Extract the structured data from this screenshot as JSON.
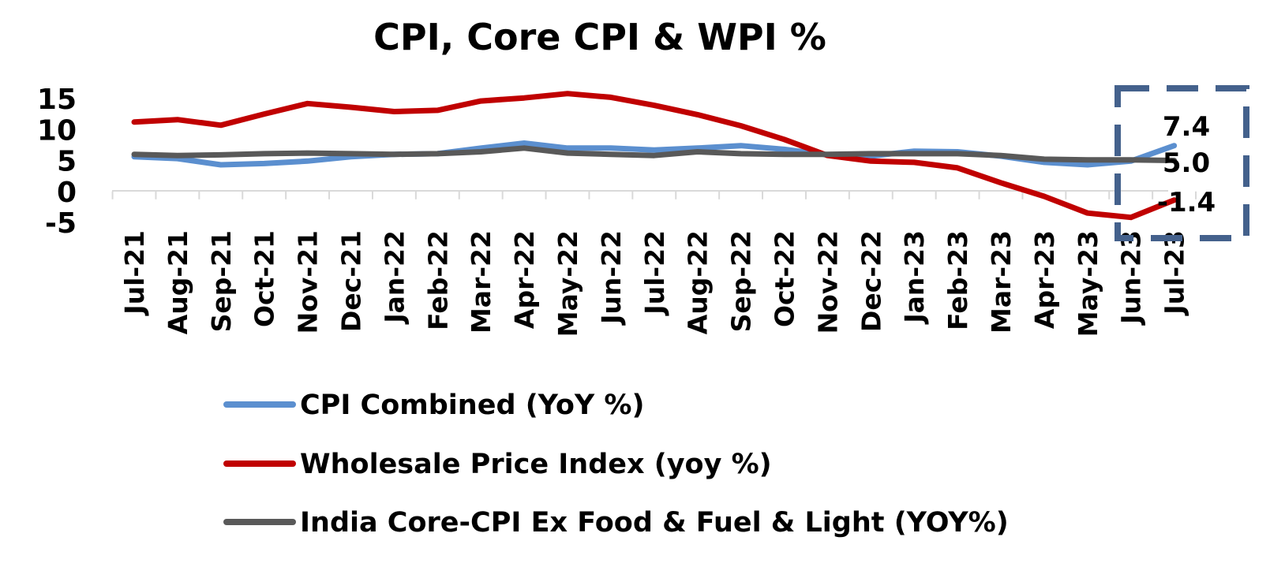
{
  "chart_data": {
    "type": "line",
    "title": "CPI, Core CPI & WPI %",
    "xlabel": "",
    "ylabel": "",
    "ylim": [
      -5,
      15
    ],
    "yticks": [
      "15",
      "10",
      "5",
      "0",
      "-5"
    ],
    "categories": [
      "Jul-21",
      "Aug-21",
      "Sep-21",
      "Oct-21",
      "Nov-21",
      "Dec-21",
      "Jan-22",
      "Feb-22",
      "Mar-22",
      "Apr-22",
      "May-22",
      "Jun-22",
      "Jul-22",
      "Aug-22",
      "Sep-22",
      "Oct-22",
      "Nov-22",
      "Dec-22",
      "Jan-23",
      "Feb-23",
      "Mar-23",
      "Apr-23",
      "May-23",
      "Jun-23",
      "Jul-23"
    ],
    "legend_position": "bottom",
    "grid": false,
    "series": [
      {
        "name": "CPI Combined (YoY %)",
        "color": "#5B8FCF",
        "values": [
          5.6,
          5.3,
          4.3,
          4.5,
          4.9,
          5.6,
          6.0,
          6.1,
          7.0,
          7.8,
          7.0,
          7.0,
          6.7,
          7.0,
          7.4,
          6.8,
          5.9,
          5.7,
          6.5,
          6.4,
          5.7,
          4.7,
          4.3,
          4.9,
          7.4
        ]
      },
      {
        "name": "Wholesale Price Index (yoy %)",
        "color": "#C00000",
        "values": [
          11.2,
          11.6,
          10.7,
          12.5,
          14.2,
          13.6,
          12.9,
          13.1,
          14.6,
          15.1,
          15.8,
          15.2,
          13.9,
          12.4,
          10.6,
          8.4,
          5.8,
          4.9,
          4.7,
          3.8,
          1.4,
          -0.8,
          -3.5,
          -4.2,
          -1.4
        ]
      },
      {
        "name": "India Core-CPI Ex Food & Fuel & Light (YOY%)",
        "color": "#595959",
        "values": [
          6.0,
          5.8,
          5.9,
          6.1,
          6.2,
          6.1,
          6.0,
          6.1,
          6.4,
          7.0,
          6.2,
          6.0,
          5.8,
          6.4,
          6.1,
          6.0,
          6.0,
          6.1,
          6.1,
          6.1,
          5.8,
          5.2,
          5.1,
          5.1,
          5.0
        ]
      }
    ],
    "annotations": [
      {
        "series": 0,
        "text": "7.4"
      },
      {
        "series": 2,
        "text": "5.0"
      },
      {
        "series": 1,
        "text": "-1.4"
      }
    ],
    "highlight_box_color": "#44618C"
  }
}
